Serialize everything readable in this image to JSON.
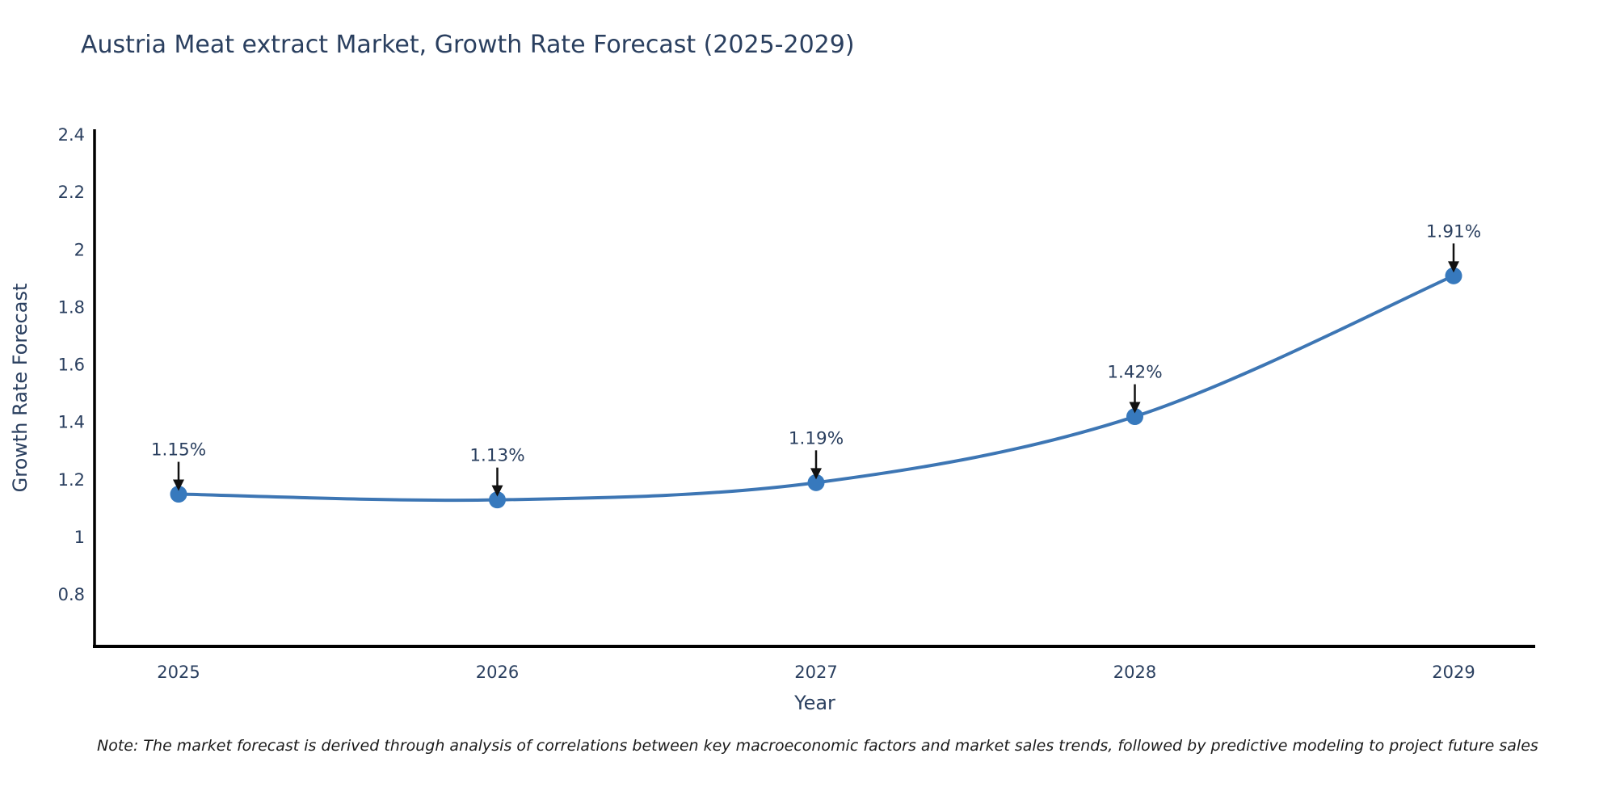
{
  "title": "Austria Meat extract Market, Growth Rate Forecast (2025-2029)",
  "note": "Note: The market forecast is derived through analysis of correlations between key macroeconomic factors and market sales trends, followed by predictive modeling to project future sales",
  "chart_data": {
    "type": "line",
    "title": "Austria Meat extract Market, Growth Rate Forecast (2025-2029)",
    "xlabel": "Year",
    "ylabel": "Growth Rate Forecast",
    "x": [
      2025,
      2026,
      2027,
      2028,
      2029
    ],
    "xtick_labels": [
      "2025",
      "2026",
      "2027",
      "2028",
      "2029"
    ],
    "series": [
      {
        "name": "Growth Rate Forecast",
        "values": [
          1.15,
          1.13,
          1.19,
          1.42,
          1.91
        ],
        "point_labels": [
          "1.15%",
          "1.13%",
          "1.19%",
          "1.42%",
          "1.91%"
        ]
      }
    ],
    "yticks": [
      0.8,
      1,
      1.2,
      1.4,
      1.6,
      1.8,
      2,
      2.2,
      2.4
    ],
    "ytick_labels": [
      "0.8",
      "1",
      "1.2",
      "1.4",
      "1.6",
      "1.8",
      "2",
      "2.2",
      "2.4"
    ],
    "ylim": [
      0.62,
      2.42
    ],
    "grid": false,
    "legend_position": "none",
    "curve": "spline",
    "annotation_arrows": true
  },
  "colors": {
    "line": "#3d76b4",
    "marker": "#3779bd",
    "axis_line": "#000000",
    "text": "#2a3f5f",
    "annotation_arrow": "#111111",
    "note_text": "#1a1a1a",
    "background": "#ffffff"
  }
}
